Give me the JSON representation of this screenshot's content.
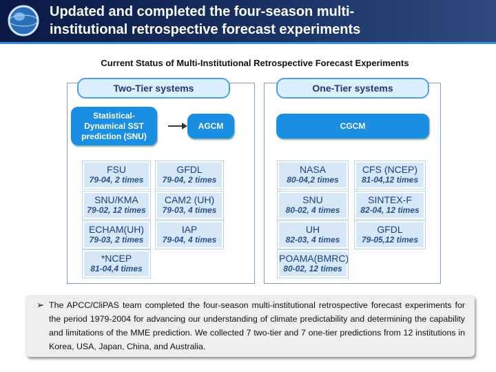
{
  "header": {
    "title_lines": [
      "Updated and completed the four-season multi-",
      "institutional retrospective forecast experiments"
    ]
  },
  "diagram": {
    "title": "Current Status of Multi-Institutional Retrospective Forecast Experiments",
    "panels": [
      {
        "heading": "Two-Tier systems",
        "flow": [
          {
            "lines": [
              "Statistical-",
              "Dynamical SST",
              "prediction (SNU)"
            ]
          },
          {
            "lines": [
              "AGCM"
            ]
          }
        ],
        "cells": [
          {
            "name": "FSU",
            "period": "79-04, 2 times"
          },
          {
            "name": "GFDL",
            "period": "79-04, 2 times"
          },
          {
            "name": "SNU/KMA",
            "period": "79-02, 12 times"
          },
          {
            "name": "CAM2 (UH)",
            "period": "79-03, 4 times"
          },
          {
            "name": "ECHAM(UH)",
            "period": "79-03, 2 times"
          },
          {
            "name": "IAP",
            "period": "79-04, 4 times"
          },
          {
            "name": "*NCEP",
            "period": "81-04,4 times"
          }
        ]
      },
      {
        "heading": "One-Tier systems",
        "flow": [
          {
            "lines": [
              "CGCM"
            ]
          }
        ],
        "cells": [
          {
            "name": "NASA",
            "period": "80-04,2 times"
          },
          {
            "name": "CFS (NCEP)",
            "period": "81-04,12 times"
          },
          {
            "name": "SNU",
            "period": "80-02, 4 times"
          },
          {
            "name": "SINTEX-F",
            "period": "82-04, 12 times"
          },
          {
            "name": "UH",
            "period": "82-03, 4 times"
          },
          {
            "name": "GFDL",
            "period": "79-05,12 times"
          },
          {
            "name": "POAMA(BMRC)",
            "period": "80-02, 12 times"
          }
        ]
      }
    ]
  },
  "note": {
    "bullet": "➢",
    "text": "The APCC/CliPAS team completed the four-season multi-institutional retrospective forecast experiments for the period 1979-2004 for advancing our understanding of climate predictability and determining the capability and limitations of the MME prediction. We collected 7 two-tier and 7 one-tier predictions from 12 institutions in Korea, USA, Japan, China, and Australia."
  }
}
